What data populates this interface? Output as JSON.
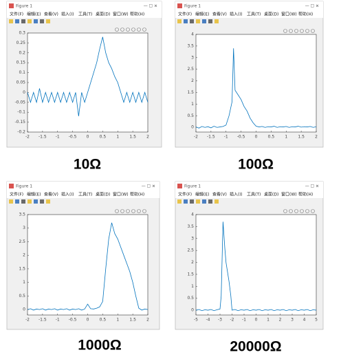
{
  "chart_data": [
    {
      "type": "line",
      "window_title": "Figure 1",
      "menus": [
        "文件(F)",
        "编辑(E)",
        "查看(V)",
        "插入(I)",
        "工具(T)",
        "桌面(D)",
        "窗口(W)",
        "帮助(H)"
      ],
      "caption": "10Ω",
      "x": [
        -2,
        -1.9,
        -1.8,
        -1.7,
        -1.6,
        -1.5,
        -1.4,
        -1.3,
        -1.2,
        -1.1,
        -1,
        -0.9,
        -0.8,
        -0.7,
        -0.6,
        -0.5,
        -0.4,
        -0.3,
        -0.2,
        -0.1,
        0,
        0.1,
        0.2,
        0.3,
        0.4,
        0.5,
        0.6,
        0.7,
        0.8,
        0.9,
        1,
        1.1,
        1.2,
        1.3,
        1.4,
        1.5,
        1.6,
        1.7,
        1.8,
        1.9,
        2
      ],
      "series": [
        {
          "color": "#0072bd",
          "values": [
            0,
            -0.05,
            0,
            -0.05,
            0.02,
            -0.05,
            0,
            -0.05,
            0,
            -0.05,
            0,
            -0.05,
            0,
            -0.05,
            0,
            -0.05,
            0,
            -0.12,
            0,
            -0.05,
            0,
            0.05,
            0.1,
            0.15,
            0.22,
            0.28,
            0.2,
            0.15,
            0.12,
            0.08,
            0.05,
            0,
            -0.05,
            0,
            -0.05,
            0,
            -0.05,
            0,
            -0.05,
            0,
            -0.05
          ]
        }
      ],
      "xlim": [
        -2,
        2
      ],
      "ylim": [
        -0.2,
        0.3
      ],
      "xticks": [
        -2,
        -1.5,
        -1,
        -0.5,
        0,
        0.5,
        1,
        1.5,
        2
      ],
      "yticks": [
        -0.2,
        -0.15,
        -0.1,
        -0.05,
        0,
        0.05,
        0.1,
        0.15,
        0.2,
        0.25,
        0.3
      ]
    },
    {
      "type": "line",
      "window_title": "Figure 1",
      "menus": [
        "文件(F)",
        "编辑(E)",
        "查看(V)",
        "插入(I)",
        "工具(T)",
        "桌面(D)",
        "窗口(W)",
        "帮助(H)"
      ],
      "caption": "100Ω",
      "x": [
        -2,
        -1.9,
        -1.8,
        -1.7,
        -1.6,
        -1.5,
        -1.4,
        -1.3,
        -1.2,
        -1.1,
        -1,
        -0.9,
        -0.8,
        -0.75,
        -0.7,
        -0.6,
        -0.5,
        -0.4,
        -0.3,
        -0.2,
        -0.1,
        0,
        0.1,
        0.2,
        0.3,
        0.4,
        0.5,
        0.6,
        0.7,
        0.8,
        0.9,
        1,
        1.1,
        1.2,
        1.3,
        1.4,
        1.5,
        1.6,
        1.7,
        1.8,
        1.9,
        2
      ],
      "series": [
        {
          "color": "#0072bd",
          "values": [
            0.02,
            -0.03,
            0.04,
            0,
            0.03,
            -0.02,
            0.05,
            0,
            0.02,
            0.04,
            0.1,
            0.5,
            1.1,
            3.4,
            1.6,
            1.4,
            1.2,
            0.9,
            0.7,
            0.4,
            0.2,
            0.05,
            0.02,
            0.04,
            0,
            0.03,
            0.02,
            0.05,
            0,
            0.03,
            0.02,
            0.04,
            0,
            0.03,
            0.02,
            0.05,
            0.01,
            0.03,
            0.02,
            0.04,
            0,
            0.03
          ]
        }
      ],
      "xlim": [
        -2,
        2
      ],
      "ylim": [
        -0.2,
        4
      ],
      "xticks": [
        -2,
        -1.5,
        -1,
        -0.5,
        0,
        0.5,
        1,
        1.5,
        2
      ],
      "yticks": [
        0,
        0.5,
        1,
        1.5,
        2,
        2.5,
        3,
        3.5,
        4
      ]
    },
    {
      "type": "line",
      "window_title": "Figure 1",
      "menus": [
        "文件(F)",
        "编辑(E)",
        "查看(V)",
        "插入(I)",
        "工具(T)",
        "桌面(D)",
        "窗口(W)",
        "帮助(H)"
      ],
      "caption": "1000Ω",
      "x": [
        -2,
        -1.9,
        -1.8,
        -1.7,
        -1.6,
        -1.5,
        -1.4,
        -1.3,
        -1.2,
        -1.1,
        -1,
        -0.9,
        -0.8,
        -0.7,
        -0.6,
        -0.5,
        -0.4,
        -0.3,
        -0.2,
        -0.1,
        0,
        0.1,
        0.2,
        0.3,
        0.4,
        0.5,
        0.6,
        0.7,
        0.8,
        0.9,
        1,
        1.1,
        1.2,
        1.3,
        1.4,
        1.5,
        1.6,
        1.7,
        1.8,
        1.9,
        2
      ],
      "series": [
        {
          "color": "#0072bd",
          "values": [
            0,
            0.03,
            -0.02,
            0.02,
            0,
            0.03,
            -0.02,
            0.02,
            0,
            0.03,
            -0.02,
            0.02,
            0,
            0.03,
            -0.02,
            0.02,
            0,
            0.03,
            -0.02,
            0.02,
            0.2,
            0.03,
            0.02,
            0.05,
            0.1,
            0.3,
            1.5,
            2.6,
            3.2,
            2.8,
            2.6,
            2.3,
            2,
            1.7,
            1.4,
            1,
            0.5,
            0.05,
            -0.02,
            0.02,
            0
          ]
        }
      ],
      "xlim": [
        -2,
        2
      ],
      "ylim": [
        -0.2,
        3.5
      ],
      "xticks": [
        -2,
        -1.5,
        -1,
        -0.5,
        0,
        0.5,
        1,
        1.5,
        2
      ],
      "yticks": [
        0,
        0.5,
        1,
        1.5,
        2,
        2.5,
        3,
        3.5
      ]
    },
    {
      "type": "line",
      "window_title": "Figure 1",
      "menus": [
        "文件(F)",
        "编辑(E)",
        "查看(V)",
        "插入(I)",
        "工具(T)",
        "桌面(D)",
        "窗口(W)",
        "帮助(H)"
      ],
      "caption": "20000Ω",
      "x": [
        -5,
        -4.75,
        -4.5,
        -4.25,
        -4,
        -3.75,
        -3.5,
        -3.25,
        -3,
        -2.9,
        -2.75,
        -2.6,
        -2.5,
        -2.25,
        -2.1,
        -2,
        -1.75,
        -1.5,
        -1.25,
        -1,
        -0.75,
        -0.5,
        -0.25,
        0,
        0.25,
        0.5,
        0.75,
        1,
        1.25,
        1.5,
        1.75,
        2,
        2.25,
        2.5,
        2.75,
        3,
        3.25,
        3.5,
        3.75,
        4,
        4.25,
        4.5,
        4.75,
        5
      ],
      "series": [
        {
          "color": "#0072bd",
          "values": [
            0,
            0.03,
            -0.02,
            0.02,
            0,
            0.03,
            -0.02,
            0.02,
            0.05,
            0.6,
            3.7,
            2.6,
            2,
            1.2,
            0.6,
            0,
            0.03,
            -0.02,
            0.02,
            0,
            0.03,
            -0.02,
            0.02,
            0,
            0.03,
            -0.02,
            0.02,
            0,
            0.03,
            -0.02,
            0.02,
            0,
            0.03,
            -0.02,
            0.02,
            0,
            0.03,
            -0.02,
            0.02,
            0,
            0.03,
            -0.02,
            0.02,
            0
          ]
        }
      ],
      "xlim": [
        -5,
        5
      ],
      "ylim": [
        -0.2,
        4
      ],
      "xticks": [
        -5,
        -4,
        -3,
        -2,
        -1,
        0,
        1,
        2,
        3,
        4,
        5
      ],
      "yticks": [
        0,
        0.5,
        1,
        1.5,
        2,
        2.5,
        3,
        3.5,
        4
      ]
    }
  ]
}
